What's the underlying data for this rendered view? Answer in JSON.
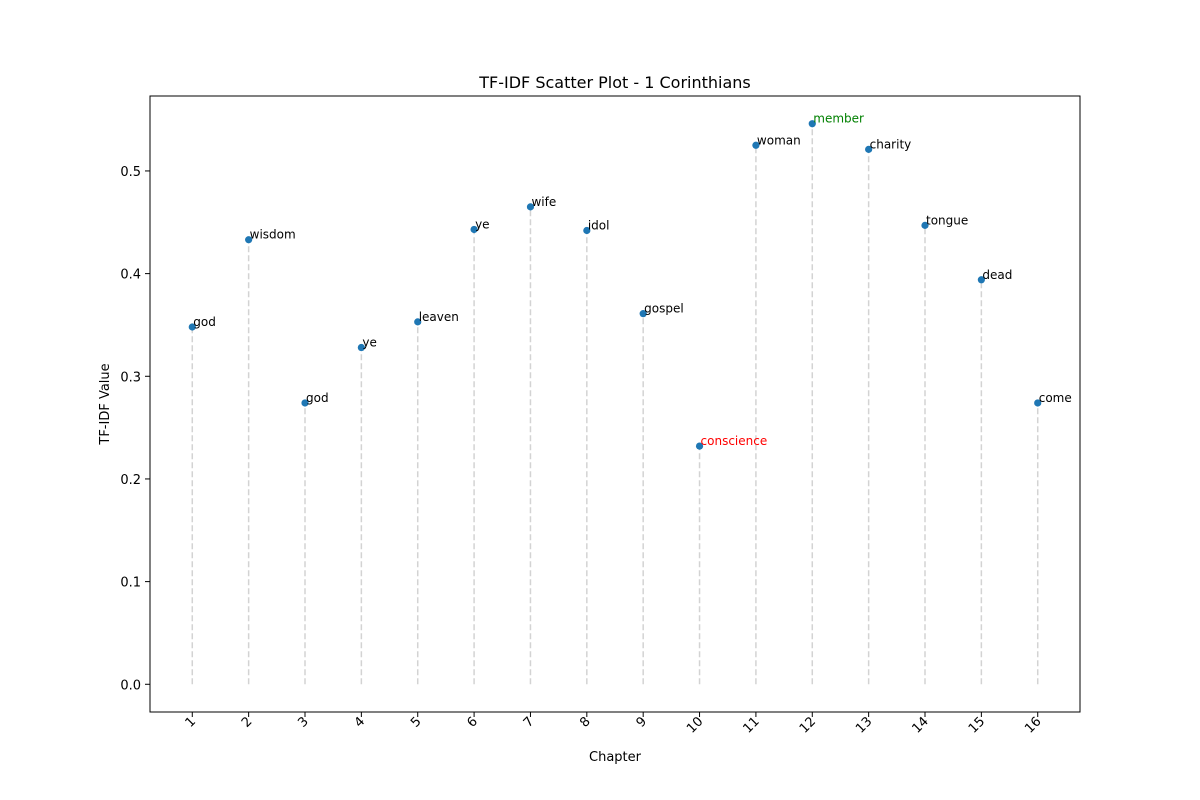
{
  "chart_data": {
    "type": "scatter",
    "title": "TF-IDF Scatter Plot - 1 Corinthians",
    "xlabel": "Chapter",
    "ylabel": "TF-IDF Value",
    "xlim": [
      0.25,
      16.75
    ],
    "ylim": [
      -0.027,
      0.573
    ],
    "yticks": [
      "0.0",
      "0.1",
      "0.2",
      "0.3",
      "0.4",
      "0.5"
    ],
    "ytick_values": [
      0.0,
      0.1,
      0.2,
      0.3,
      0.4,
      0.5
    ],
    "x": [
      1,
      2,
      3,
      4,
      5,
      6,
      7,
      8,
      9,
      10,
      11,
      12,
      13,
      14,
      15,
      16
    ],
    "xtick_labels": [
      "1",
      "2",
      "3",
      "4",
      "5",
      "6",
      "7",
      "8",
      "9",
      "10",
      "11",
      "12",
      "13",
      "14",
      "15",
      "16"
    ],
    "values": [
      0.348,
      0.433,
      0.274,
      0.328,
      0.353,
      0.443,
      0.465,
      0.442,
      0.361,
      0.232,
      0.525,
      0.546,
      0.521,
      0.447,
      0.394,
      0.274
    ],
    "words": [
      "god",
      "wisdom",
      "god",
      "ye",
      "leaven",
      "ye",
      "wife",
      "idol",
      "gospel",
      "conscience",
      "woman",
      "member",
      "charity",
      "tongue",
      "dead",
      "come"
    ],
    "grid": false,
    "stems": true,
    "colors": {
      "point": "#1f77b4",
      "stem": "#d3d3d3",
      "label_default": "#000000",
      "label_max": "#008000",
      "label_min": "#ff0000"
    }
  }
}
